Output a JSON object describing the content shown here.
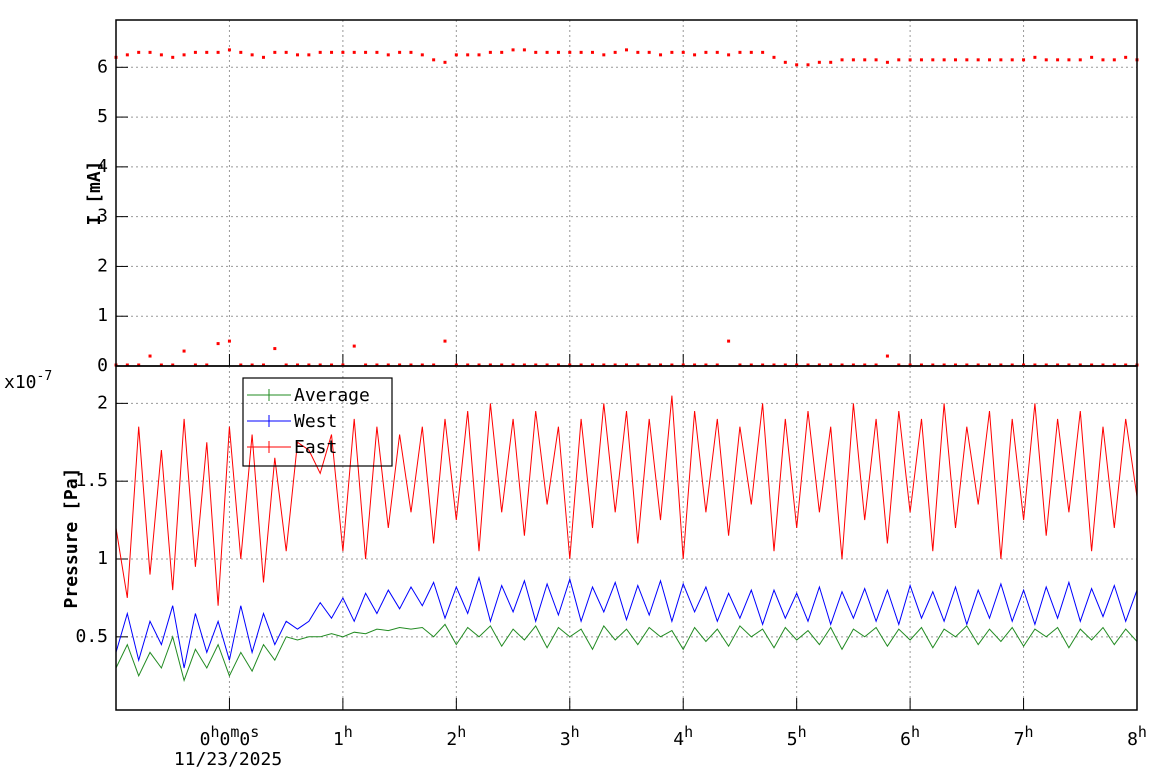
{
  "chart_data": [
    {
      "type": "scatter",
      "y_label": "I [mA]",
      "x": [
        -1.0,
        -0.9,
        -0.8,
        -0.7,
        -0.6,
        -0.5,
        -0.4,
        -0.3,
        -0.2,
        -0.1,
        0.0,
        0.1,
        0.2,
        0.3,
        0.4,
        0.5,
        0.6,
        0.7,
        0.8,
        0.9,
        1.0,
        1.1,
        1.2,
        1.3,
        1.4,
        1.5,
        1.6,
        1.7,
        1.8,
        1.9,
        2.0,
        2.1,
        2.2,
        2.3,
        2.4,
        2.5,
        2.6,
        2.7,
        2.8,
        2.9,
        3.0,
        3.1,
        3.2,
        3.3,
        3.4,
        3.5,
        3.6,
        3.7,
        3.8,
        3.9,
        4.0,
        4.1,
        4.2,
        4.3,
        4.4,
        4.5,
        4.6,
        4.7,
        4.8,
        4.9,
        5.0,
        5.1,
        5.2,
        5.3,
        5.4,
        5.5,
        5.6,
        5.7,
        5.8,
        5.9,
        6.0,
        6.1,
        6.2,
        6.3,
        6.4,
        6.5,
        6.6,
        6.7,
        6.8,
        6.9,
        7.0,
        7.1,
        7.2,
        7.3,
        7.4,
        7.5,
        7.6,
        7.7,
        7.8,
        7.9,
        8.0
      ],
      "series": [
        {
          "color": "#ff0000",
          "values": [
            6.2,
            6.25,
            6.3,
            6.3,
            6.25,
            6.2,
            6.25,
            6.3,
            6.3,
            6.3,
            6.35,
            6.3,
            6.25,
            6.2,
            6.3,
            6.3,
            6.25,
            6.25,
            6.3,
            6.3,
            6.3,
            6.3,
            6.3,
            6.3,
            6.25,
            6.3,
            6.3,
            6.25,
            6.15,
            6.1,
            6.25,
            6.25,
            6.25,
            6.3,
            6.3,
            6.35,
            6.35,
            6.3,
            6.3,
            6.3,
            6.3,
            6.3,
            6.3,
            6.25,
            6.3,
            6.35,
            6.3,
            6.3,
            6.25,
            6.3,
            6.3,
            6.25,
            6.3,
            6.3,
            6.25,
            6.3,
            6.3,
            6.3,
            6.2,
            6.1,
            6.05,
            6.05,
            6.1,
            6.1,
            6.15,
            6.15,
            6.15,
            6.15,
            6.1,
            6.15,
            6.15,
            6.15,
            6.15,
            6.15,
            6.15,
            6.15,
            6.15,
            6.15,
            6.15,
            6.15,
            6.15,
            6.2,
            6.15,
            6.15,
            6.15,
            6.15,
            6.2,
            6.15,
            6.15,
            6.2,
            6.15
          ]
        },
        {
          "color": "#ff0000",
          "values": [
            0.02,
            0.02,
            0.02,
            0.2,
            0.02,
            0.02,
            0.3,
            0.02,
            0.02,
            0.45,
            0.5,
            0.02,
            0.02,
            0.02,
            0.35,
            0.02,
            0.02,
            0.02,
            0.02,
            0.02,
            0.02,
            0.4,
            0.02,
            0.02,
            0.02,
            0.02,
            0.02,
            0.02,
            0.02,
            0.5,
            0.02,
            0.02,
            0.02,
            0.02,
            0.02,
            0.02,
            0.02,
            0.02,
            0.02,
            0.02,
            0.02,
            0.02,
            0.02,
            0.02,
            0.02,
            0.02,
            0.02,
            0.02,
            0.02,
            0.02,
            0.02,
            0.02,
            0.02,
            0.02,
            0.5,
            0.02,
            0.02,
            0.02,
            0.02,
            0.02,
            0.02,
            0.02,
            0.02,
            0.02,
            0.02,
            0.02,
            0.02,
            0.02,
            0.2,
            0.02,
            0.02,
            0.02,
            0.02,
            0.02,
            0.02,
            0.02,
            0.02,
            0.02,
            0.02,
            0.02,
            0.02,
            0.02,
            0.02,
            0.02,
            0.02,
            0.02,
            0.02,
            0.02,
            0.02,
            0.02,
            0.02
          ]
        }
      ],
      "xlim": [
        -1.0,
        8.0
      ],
      "ylim": [
        0,
        6.95
      ],
      "yticks": [
        0,
        1,
        2,
        3,
        4,
        5,
        6
      ],
      "grid": true
    },
    {
      "type": "line",
      "y_label": "Pressure [Pa]",
      "multiplier": {
        "base": "x10",
        "exponent": "-7"
      },
      "date": "11/23/2025",
      "legend": "top-left",
      "x": [
        -1.0,
        -0.9,
        -0.8,
        -0.7,
        -0.6,
        -0.5,
        -0.4,
        -0.3,
        -0.2,
        -0.1,
        0.0,
        0.1,
        0.2,
        0.3,
        0.4,
        0.5,
        0.6,
        0.7,
        0.8,
        0.9,
        1.0,
        1.1,
        1.2,
        1.3,
        1.4,
        1.5,
        1.6,
        1.7,
        1.8,
        1.9,
        2.0,
        2.1,
        2.2,
        2.3,
        2.4,
        2.5,
        2.6,
        2.7,
        2.8,
        2.9,
        3.0,
        3.1,
        3.2,
        3.3,
        3.4,
        3.5,
        3.6,
        3.7,
        3.8,
        3.9,
        4.0,
        4.1,
        4.2,
        4.3,
        4.4,
        4.5,
        4.6,
        4.7,
        4.8,
        4.9,
        5.0,
        5.1,
        5.2,
        5.3,
        5.4,
        5.5,
        5.6,
        5.7,
        5.8,
        5.9,
        6.0,
        6.1,
        6.2,
        6.3,
        6.4,
        6.5,
        6.6,
        6.7,
        6.8,
        6.9,
        7.0,
        7.1,
        7.2,
        7.3,
        7.4,
        7.5,
        7.6,
        7.7,
        7.8,
        7.9,
        8.0
      ],
      "series": [
        {
          "name": "Average",
          "color": "#228b22",
          "values": [
            0.3,
            0.45,
            0.25,
            0.4,
            0.3,
            0.5,
            0.22,
            0.42,
            0.3,
            0.45,
            0.25,
            0.4,
            0.28,
            0.45,
            0.35,
            0.5,
            0.48,
            0.5,
            0.5,
            0.52,
            0.5,
            0.53,
            0.52,
            0.55,
            0.54,
            0.56,
            0.55,
            0.56,
            0.5,
            0.58,
            0.45,
            0.56,
            0.5,
            0.57,
            0.44,
            0.55,
            0.48,
            0.57,
            0.43,
            0.56,
            0.5,
            0.55,
            0.42,
            0.57,
            0.48,
            0.55,
            0.45,
            0.56,
            0.5,
            0.54,
            0.42,
            0.56,
            0.47,
            0.55,
            0.44,
            0.57,
            0.5,
            0.55,
            0.43,
            0.56,
            0.48,
            0.54,
            0.45,
            0.56,
            0.42,
            0.55,
            0.5,
            0.56,
            0.44,
            0.55,
            0.48,
            0.56,
            0.43,
            0.55,
            0.5,
            0.57,
            0.45,
            0.55,
            0.47,
            0.56,
            0.44,
            0.55,
            0.5,
            0.56,
            0.43,
            0.55,
            0.48,
            0.56,
            0.45,
            0.55,
            0.47
          ]
        },
        {
          "name": "West",
          "color": "#0000ff",
          "values": [
            0.4,
            0.65,
            0.35,
            0.6,
            0.45,
            0.7,
            0.3,
            0.65,
            0.4,
            0.6,
            0.35,
            0.7,
            0.4,
            0.65,
            0.45,
            0.6,
            0.55,
            0.6,
            0.72,
            0.62,
            0.75,
            0.6,
            0.78,
            0.65,
            0.8,
            0.68,
            0.82,
            0.7,
            0.85,
            0.62,
            0.82,
            0.65,
            0.88,
            0.6,
            0.83,
            0.66,
            0.86,
            0.6,
            0.84,
            0.64,
            0.87,
            0.6,
            0.82,
            0.66,
            0.85,
            0.61,
            0.83,
            0.64,
            0.86,
            0.6,
            0.84,
            0.66,
            0.82,
            0.6,
            0.78,
            0.62,
            0.8,
            0.58,
            0.8,
            0.62,
            0.78,
            0.6,
            0.82,
            0.58,
            0.79,
            0.62,
            0.81,
            0.6,
            0.8,
            0.58,
            0.83,
            0.62,
            0.79,
            0.6,
            0.82,
            0.58,
            0.8,
            0.62,
            0.84,
            0.6,
            0.8,
            0.58,
            0.82,
            0.62,
            0.85,
            0.6,
            0.81,
            0.63,
            0.83,
            0.6,
            0.8
          ]
        },
        {
          "name": "East",
          "color": "#ff0000",
          "values": [
            1.2,
            0.75,
            1.85,
            0.9,
            1.7,
            0.8,
            1.9,
            0.95,
            1.75,
            0.7,
            1.85,
            1.0,
            1.8,
            0.85,
            1.65,
            1.05,
            1.75,
            1.7,
            1.55,
            1.8,
            1.05,
            1.9,
            1.0,
            1.85,
            1.2,
            1.8,
            1.3,
            1.85,
            1.1,
            1.9,
            1.25,
            1.95,
            1.05,
            2.0,
            1.3,
            1.9,
            1.15,
            1.95,
            1.35,
            1.85,
            1.0,
            1.9,
            1.2,
            2.0,
            1.3,
            1.95,
            1.1,
            1.9,
            1.25,
            2.05,
            1.0,
            1.95,
            1.3,
            1.9,
            1.15,
            1.85,
            1.35,
            2.0,
            1.05,
            1.9,
            1.2,
            1.95,
            1.3,
            1.85,
            1.0,
            2.0,
            1.25,
            1.9,
            1.1,
            1.95,
            1.3,
            1.9,
            1.05,
            2.0,
            1.2,
            1.85,
            1.35,
            1.95,
            1.0,
            1.9,
            1.25,
            2.0,
            1.15,
            1.9,
            1.3,
            1.95,
            1.05,
            1.85,
            1.2,
            1.9,
            1.4
          ]
        }
      ],
      "xlim": [
        -1.0,
        8.0
      ],
      "xticks": [
        {
          "value": 0,
          "label": "0h0m0s"
        },
        {
          "value": 1,
          "label": "1h"
        },
        {
          "value": 2,
          "label": "2h"
        },
        {
          "value": 3,
          "label": "3h"
        },
        {
          "value": 4,
          "label": "4h"
        },
        {
          "value": 5,
          "label": "5h"
        },
        {
          "value": 6,
          "label": "6h"
        },
        {
          "value": 7,
          "label": "7h"
        },
        {
          "value": 8,
          "label": "8h"
        }
      ],
      "ylim": [
        0.03,
        2.24
      ],
      "yticks": [
        0.5,
        1,
        1.5,
        2
      ],
      "grid": true
    }
  ]
}
